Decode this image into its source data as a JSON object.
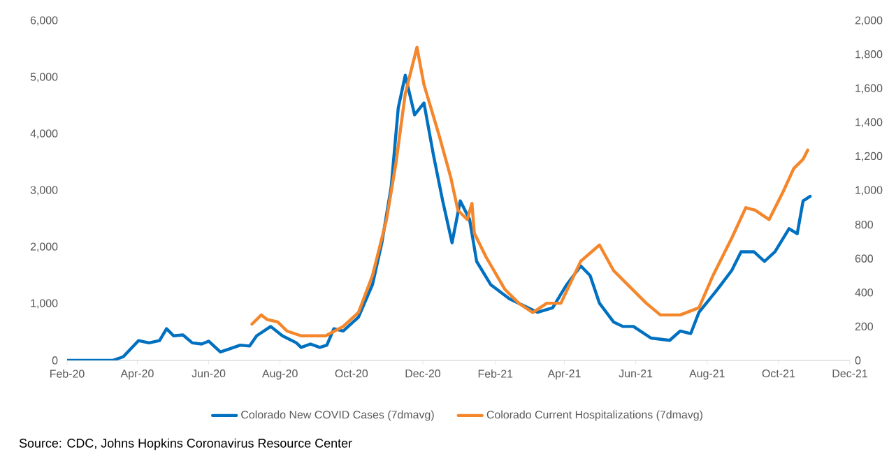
{
  "chart_data": {
    "type": "line",
    "xlim": [
      "2020-02-01",
      "2021-12-01"
    ],
    "xticks": [
      {
        "value": "2020-02-01",
        "label": "Feb-20"
      },
      {
        "value": "2020-04-01",
        "label": "Apr-20"
      },
      {
        "value": "2020-06-01",
        "label": "Jun-20"
      },
      {
        "value": "2020-08-01",
        "label": "Aug-20"
      },
      {
        "value": "2020-10-01",
        "label": "Oct-20"
      },
      {
        "value": "2020-12-01",
        "label": "Dec-20"
      },
      {
        "value": "2021-02-01",
        "label": "Feb-21"
      },
      {
        "value": "2021-04-01",
        "label": "Apr-21"
      },
      {
        "value": "2021-06-01",
        "label": "Jun-21"
      },
      {
        "value": "2021-08-01",
        "label": "Aug-21"
      },
      {
        "value": "2021-10-01",
        "label": "Oct-21"
      },
      {
        "value": "2021-12-01",
        "label": "Dec-21"
      }
    ],
    "ylim": [
      0,
      6000
    ],
    "yticks": [
      0,
      {
        "value": 1000,
        "label": "1,000"
      },
      {
        "value": 2000,
        "label": "2,000"
      },
      {
        "value": 3000,
        "label": "3,000"
      },
      {
        "value": 4000,
        "label": "4,000"
      },
      {
        "value": 5000,
        "label": "5,000"
      },
      {
        "value": 6000,
        "label": "6,000"
      }
    ],
    "y2lim": [
      0,
      2000
    ],
    "y2ticks": [
      0,
      200,
      400,
      600,
      800,
      {
        "value": 1000,
        "label": "1,000"
      },
      {
        "value": 1200,
        "label": "1,200"
      },
      {
        "value": 1400,
        "label": "1,400"
      },
      {
        "value": 1600,
        "label": "1,600"
      },
      {
        "value": 1800,
        "label": "1,800"
      },
      {
        "value": 2000,
        "label": "2,000"
      }
    ],
    "legend": "bottom",
    "annotations": [
      "Source: CDC, Johns Hopkins Coronavirus Resource Center"
    ],
    "series": [
      {
        "name": "Colorado New COVID Cases (7dmavg)",
        "color": "#0070c0",
        "axis": "y",
        "x": [
          "2020-02-01",
          "2020-03-11",
          "2020-03-20",
          "2020-04-02",
          "2020-04-11",
          "2020-04-20",
          "2020-04-26",
          "2020-05-02",
          "2020-05-10",
          "2020-05-18",
          "2020-05-26",
          "2020-06-01",
          "2020-06-11",
          "2020-06-19",
          "2020-06-28",
          "2020-07-06",
          "2020-07-12",
          "2020-07-24",
          "2020-08-03",
          "2020-08-15",
          "2020-08-19",
          "2020-08-27",
          "2020-09-04",
          "2020-09-10",
          "2020-09-16",
          "2020-09-24",
          "2020-10-07",
          "2020-10-19",
          "2020-10-27",
          "2020-11-04",
          "2020-11-10",
          "2020-11-16",
          "2020-11-24",
          "2020-12-02",
          "2020-12-10",
          "2020-12-18",
          "2020-12-26",
          "2021-01-02",
          "2021-01-10",
          "2021-01-16",
          "2021-01-28",
          "2021-02-13",
          "2021-02-21",
          "2021-03-09",
          "2021-03-22",
          "2021-04-03",
          "2021-04-15",
          "2021-04-23",
          "2021-05-01",
          "2021-05-13",
          "2021-05-21",
          "2021-05-30",
          "2021-06-14",
          "2021-06-30",
          "2021-07-09",
          "2021-07-18",
          "2021-07-25",
          "2021-08-10",
          "2021-08-22",
          "2021-08-30",
          "2021-09-10",
          "2021-09-19",
          "2021-09-28",
          "2021-10-10",
          "2021-10-17",
          "2021-10-22",
          "2021-10-28"
        ],
        "values": [
          0,
          0,
          65,
          350,
          310,
          350,
          560,
          435,
          450,
          310,
          290,
          340,
          150,
          205,
          270,
          255,
          435,
          600,
          435,
          310,
          230,
          290,
          230,
          270,
          560,
          520,
          765,
          1340,
          2080,
          3070,
          4460,
          5040,
          4340,
          4550,
          3640,
          2820,
          2080,
          2820,
          2490,
          1750,
          1340,
          1090,
          1010,
          850,
          930,
          1340,
          1670,
          1500,
          1010,
          680,
          600,
          600,
          395,
          355,
          520,
          475,
          850,
          1260,
          1590,
          1920,
          1920,
          1750,
          1920,
          2330,
          2240,
          2820,
          2900
        ]
      },
      {
        "name": "Colorado Current Hospitalizations (7dmavg)",
        "color": "#f4862b",
        "axis": "y2",
        "x": [
          "2020-07-08",
          "2020-07-16",
          "2020-07-21",
          "2020-07-30",
          "2020-08-07",
          "2020-08-19",
          "2020-09-09",
          "2020-09-24",
          "2020-10-07",
          "2020-10-19",
          "2020-10-31",
          "2020-11-08",
          "2020-11-16",
          "2020-11-22",
          "2020-11-26",
          "2020-12-02",
          "2020-12-15",
          "2020-12-25",
          "2020-12-31",
          "2021-01-08",
          "2021-01-12",
          "2021-01-14",
          "2021-01-24",
          "2021-02-09",
          "2021-02-21",
          "2021-03-05",
          "2021-03-17",
          "2021-03-29",
          "2021-04-15",
          "2021-05-01",
          "2021-05-13",
          "2021-05-25",
          "2021-06-10",
          "2021-06-22",
          "2021-07-09",
          "2021-07-25",
          "2021-08-06",
          "2021-08-22",
          "2021-09-03",
          "2021-09-11",
          "2021-09-23",
          "2021-10-05",
          "2021-10-14",
          "2021-10-22",
          "2021-10-26"
        ],
        "values": [
          214,
          268,
          241,
          227,
          173,
          145,
          145,
          200,
          282,
          500,
          830,
          1160,
          1570,
          1735,
          1845,
          1625,
          1325,
          1075,
          885,
          830,
          925,
          750,
          610,
          420,
          337,
          282,
          337,
          337,
          585,
          680,
          530,
          447,
          337,
          268,
          268,
          310,
          500,
          720,
          900,
          885,
          830,
          995,
          1130,
          1185,
          1240
        ]
      }
    ]
  }
}
